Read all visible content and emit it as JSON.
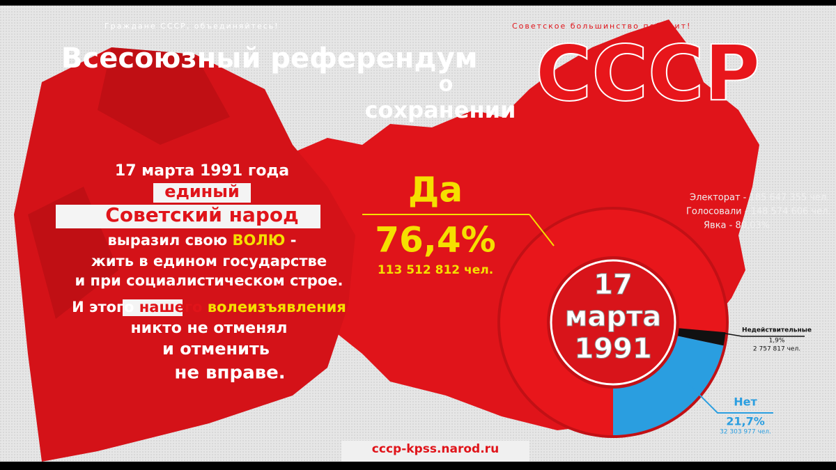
{
  "slogans": [
    "Граждане СССР, объединяйтесь!",
    "Советское большинство победит!"
  ],
  "title": {
    "line1": "Всесоюзный референдум",
    "line2": "о",
    "line3": "сохранении",
    "big": "СССР"
  },
  "statement": [
    [
      "17 марта 1991 года"
    ],
    [
      "единый"
    ],
    [
      "Советский народ"
    ],
    [
      "выразил свою ",
      "ВОЛЮ",
      " -"
    ],
    [
      "жить в едином государстве"
    ],
    [
      "и при социалистическом строе."
    ],
    [
      "И этого ",
      "нашего",
      " ",
      "волеизъявления"
    ],
    [
      "никто не отменял"
    ],
    [
      "и отменить"
    ],
    [
      "не вправе."
    ]
  ],
  "stats": [
    "Электорат - 185 647 355 чел.",
    "Голосовали - 148 574 606 чел.",
    "Явка - 80,03%"
  ],
  "url": "cccp-kpss.narod.ru",
  "chart_data": {
    "type": "donut",
    "center_label": [
      "17",
      "марта",
      "1991"
    ],
    "categories": [
      "Да",
      "Нет",
      "Недействительные"
    ],
    "values": [
      76.4,
      21.7,
      1.9
    ],
    "value_labels": [
      "76,4%",
      "21,7%",
      "1,9%"
    ],
    "count_labels": [
      "113 512 812 чел.",
      "32 303 977 чел.",
      "2 757 817 чел."
    ],
    "colors": [
      "#e8161b",
      "#2a9ee0",
      "#111111"
    ]
  }
}
